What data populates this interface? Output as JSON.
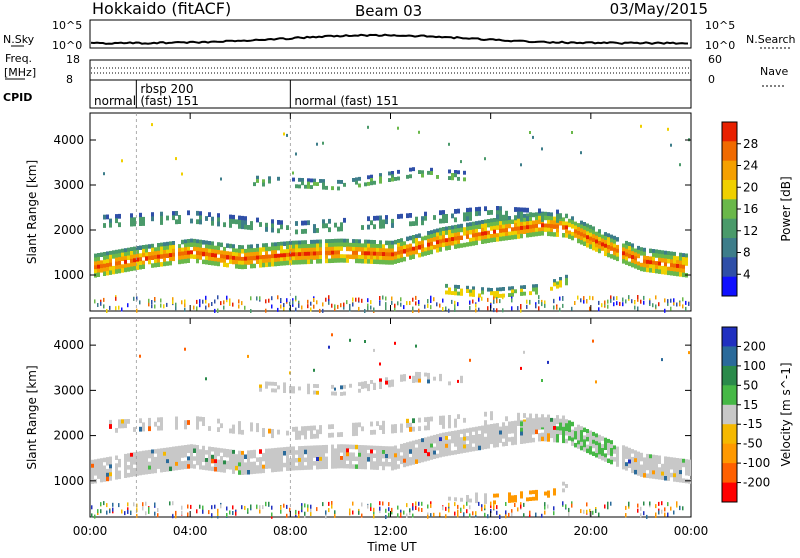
{
  "header": {
    "station": "Hokkaido (fitACF)",
    "beam": "Beam 03",
    "date": "03/May/2015"
  },
  "summary_panels": {
    "nsky_label": "N.Sky",
    "nsky_ticks": [
      "10^5",
      "10^0"
    ],
    "nsky_right_ticks": [
      "10^5",
      "10^0"
    ],
    "nsearch_label": "N.Search",
    "freq_label": "Freq.",
    "freq_unit": "[MHz]",
    "freq_ticks": [
      "18",
      "8"
    ],
    "nave_ticks": [
      "60",
      "0"
    ],
    "nave_label": "Nave",
    "cpid_label": "CPID",
    "cpid_segments": [
      {
        "label": "normal",
        "start_hour": 0
      },
      {
        "label": "rbsp 200",
        "start_hour": 1.85
      },
      {
        "label": "(fast) 151",
        "start_hour": 1.85
      },
      {
        "label": "normal (fast) 151",
        "start_hour": 8.0
      }
    ]
  },
  "colors": {
    "power_scale": [
      "#1010ff",
      "#2f4fa8",
      "#3d7d8a",
      "#4a9a6a",
      "#6ab84a",
      "#f0d000",
      "#f5a000",
      "#f06a00",
      "#e82000"
    ],
    "velocity_scale": [
      "#ff0000",
      "#ff6000",
      "#ff9900",
      "#f5b800",
      "#c8c8c8",
      "#46b846",
      "#2a8a4a",
      "#2a6a9a",
      "#2030c0"
    ]
  },
  "chart_data": [
    {
      "type": "heatmap",
      "title": "",
      "xlabel": "Time UT",
      "ylabel": "Slant Range [km]",
      "x_ticks": [
        "00:00",
        "04:00",
        "08:00",
        "12:00",
        "16:00",
        "20:00",
        "00:00"
      ],
      "xlim_hours": [
        0,
        24
      ],
      "y_ticks": [
        "1000",
        "2000",
        "3000",
        "4000"
      ],
      "ylim": [
        200,
        4600
      ],
      "colorbar": {
        "label": "Power [dB]",
        "ticks": [
          "28",
          "24",
          "20",
          "16",
          "12",
          "8",
          "4"
        ],
        "range": [
          0,
          30
        ]
      },
      "bands": [
        {
          "description": "main F-region band",
          "points": [
            [
              0.0,
              1200
            ],
            [
              2.0,
              1400
            ],
            [
              4.0,
              1550
            ],
            [
              6.0,
              1400
            ],
            [
              8.0,
              1500
            ],
            [
              10.0,
              1550
            ],
            [
              12.0,
              1500
            ],
            [
              14.0,
              1800
            ],
            [
              16.0,
              2000
            ],
            [
              18.0,
              2150
            ],
            [
              19.0,
              2100
            ],
            [
              20.5,
              1700
            ],
            [
              22.0,
              1350
            ],
            [
              24.0,
              1200
            ]
          ],
          "value_db": 26
        },
        {
          "description": "upper band",
          "points": [
            [
              0.5,
              2200
            ],
            [
              4.0,
              2300
            ],
            [
              8.0,
              2050
            ],
            [
              12.0,
              2200
            ],
            [
              16.0,
              2400
            ],
            [
              19.0,
              2300
            ]
          ],
          "value_db": 14
        },
        {
          "description": "near-range echo",
          "points": [
            [
              14.0,
              700
            ],
            [
              16.0,
              600
            ],
            [
              18.0,
              700
            ],
            [
              19.0,
              900
            ]
          ],
          "value_db": 22
        },
        {
          "description": "far-range echo",
          "points": [
            [
              6.5,
              3100
            ],
            [
              10.0,
              3000
            ],
            [
              13.0,
              3300
            ],
            [
              15.0,
              3200
            ]
          ],
          "value_db": 16
        }
      ]
    },
    {
      "type": "heatmap",
      "title": "",
      "xlabel": "Time UT",
      "ylabel": "Slant Range [km]",
      "x_ticks": [
        "00:00",
        "04:00",
        "08:00",
        "12:00",
        "16:00",
        "20:00",
        "00:00"
      ],
      "xlim_hours": [
        0,
        24
      ],
      "y_ticks": [
        "1000",
        "2000",
        "3000",
        "4000"
      ],
      "ylim": [
        200,
        4600
      ],
      "colorbar": {
        "label": "Velocity [m s^-1]",
        "ticks": [
          "200",
          "100",
          "50",
          "15",
          "-15",
          "-50",
          "-100",
          "-200"
        ],
        "range": [
          -250,
          250
        ]
      }
    }
  ]
}
